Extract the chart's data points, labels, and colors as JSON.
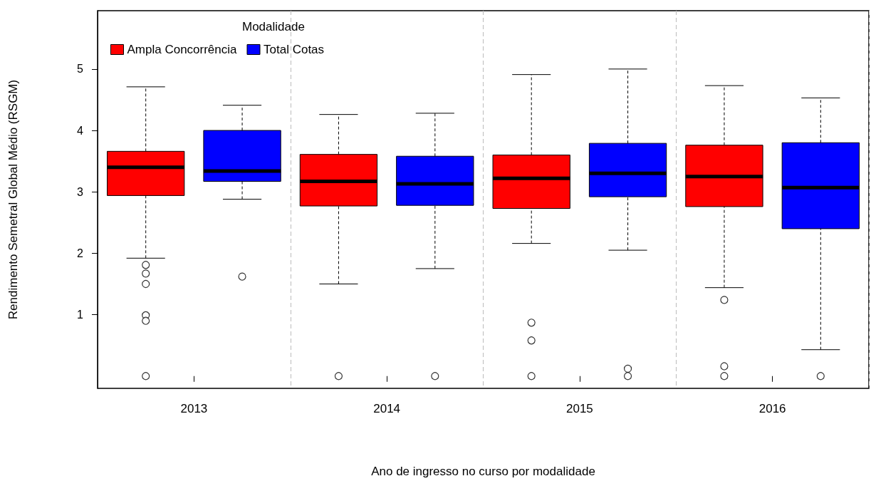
{
  "chart_data": {
    "type": "box",
    "xlabel": "Ano de ingresso no curso por modalidade",
    "ylabel": "Rendimento Semetral Global Médio (RSGM)",
    "legend_title": "Modalidade",
    "categories": [
      "2013",
      "2014",
      "2015",
      "2016"
    ],
    "series": [
      {
        "name": "Ampla Concorrência",
        "color": "#ff0000",
        "boxes": [
          {
            "low": 1.92,
            "q1": 2.94,
            "median": 3.4,
            "q3": 3.66,
            "high": 4.71,
            "outliers": [
              1.81,
              1.67,
              1.5,
              0.99,
              0.9,
              0
            ]
          },
          {
            "low": 1.5,
            "q1": 2.77,
            "median": 3.17,
            "q3": 3.61,
            "high": 4.26,
            "outliers": [
              0
            ]
          },
          {
            "low": 2.16,
            "q1": 2.73,
            "median": 3.22,
            "q3": 3.6,
            "high": 4.91,
            "outliers": [
              0.87,
              0.58,
              0
            ]
          },
          {
            "low": 1.44,
            "q1": 2.76,
            "median": 3.25,
            "q3": 3.76,
            "high": 4.73,
            "outliers": [
              1.24,
              0.16,
              0
            ]
          }
        ]
      },
      {
        "name": "Total Cotas",
        "color": "#0000ff",
        "boxes": [
          {
            "low": 2.88,
            "q1": 3.17,
            "median": 3.34,
            "q3": 4.0,
            "high": 4.41,
            "outliers": [
              1.62
            ]
          },
          {
            "low": 1.75,
            "q1": 2.78,
            "median": 3.13,
            "q3": 3.58,
            "high": 4.28,
            "outliers": [
              0
            ]
          },
          {
            "low": 2.05,
            "q1": 2.92,
            "median": 3.3,
            "q3": 3.79,
            "high": 5.0,
            "outliers": [
              0.12,
              0
            ]
          },
          {
            "low": 0.43,
            "q1": 2.4,
            "median": 3.07,
            "q3": 3.8,
            "high": 4.53,
            "outliers": [
              0
            ]
          }
        ]
      }
    ],
    "ylim": [
      -0.2,
      5.95
    ],
    "yticks": [
      1,
      2,
      3,
      4,
      5
    ],
    "grid": "x",
    "legend": "top left"
  }
}
